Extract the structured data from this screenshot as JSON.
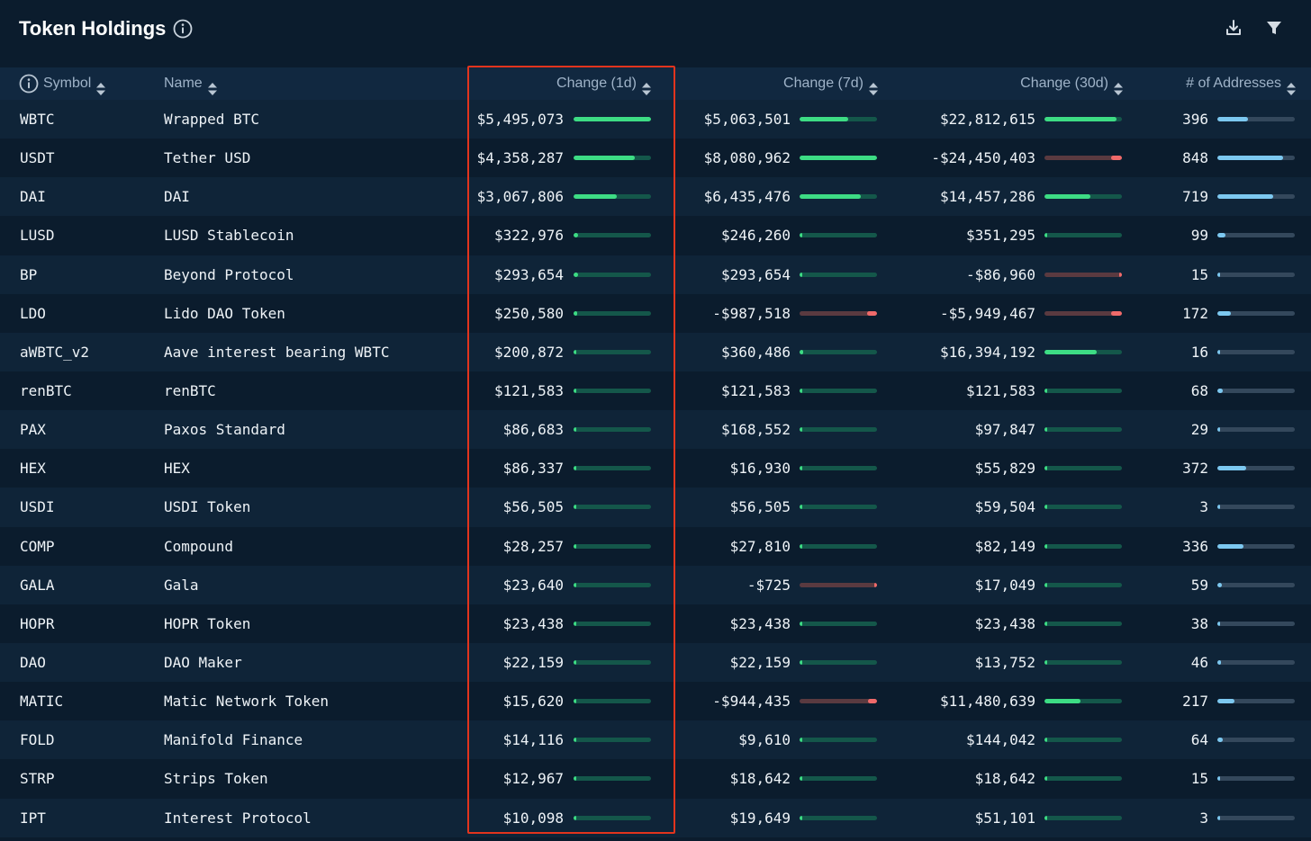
{
  "header": {
    "title": "Token Holdings",
    "info_icon": "info-circle-icon",
    "download_icon": "download-icon",
    "filter_icon": "filter-icon"
  },
  "columns": {
    "symbol": "Symbol",
    "name": "Name",
    "change_1d": "Change (1d)",
    "change_7d": "Change (7d)",
    "change_30d": "Change (30d)",
    "addresses": "# of Addresses",
    "sort_icon": "sort-updown-icon"
  },
  "colors": {
    "background": "#0b1c2d",
    "header_row": "#112840",
    "positive_fill": "#3ddc84",
    "positive_track": "#14574a",
    "negative_fill": "#f06a6a",
    "negative_track": "#5a3a40",
    "address_fill": "#7cc8f0",
    "address_track": "#34485c",
    "highlight_border": "#e2341d"
  },
  "scale": {
    "max_1d": 5495073,
    "max_7d": 8080962,
    "max_30d": 24450403,
    "max_addresses": 1000
  },
  "rows": [
    {
      "symbol": "WBTC",
      "name": "Wrapped BTC",
      "c1d": "$5,495,073",
      "v1d": 5495073,
      "c7d": "$5,063,501",
      "v7d": 5063501,
      "c30d": "$22,812,615",
      "v30d": 22812615,
      "addresses": "396",
      "vaddr": 396
    },
    {
      "symbol": "USDT",
      "name": "Tether USD",
      "c1d": "$4,358,287",
      "v1d": 4358287,
      "c7d": "$8,080,962",
      "v7d": 8080962,
      "c30d": "-$24,450,403",
      "v30d": -24450403,
      "addresses": "848",
      "vaddr": 848
    },
    {
      "symbol": "DAI",
      "name": "DAI",
      "c1d": "$3,067,806",
      "v1d": 3067806,
      "c7d": "$6,435,476",
      "v7d": 6435476,
      "c30d": "$14,457,286",
      "v30d": 14457286,
      "addresses": "719",
      "vaddr": 719
    },
    {
      "symbol": "LUSD",
      "name": "LUSD Stablecoin",
      "c1d": "$322,976",
      "v1d": 322976,
      "c7d": "$246,260",
      "v7d": 246260,
      "c30d": "$351,295",
      "v30d": 351295,
      "addresses": "99",
      "vaddr": 99
    },
    {
      "symbol": "BP",
      "name": "Beyond Protocol",
      "c1d": "$293,654",
      "v1d": 293654,
      "c7d": "$293,654",
      "v7d": 293654,
      "c30d": "-$86,960",
      "v30d": -86960,
      "addresses": "15",
      "vaddr": 15
    },
    {
      "symbol": "LDO",
      "name": "Lido DAO Token",
      "c1d": "$250,580",
      "v1d": 250580,
      "c7d": "-$987,518",
      "v7d": -987518,
      "c30d": "-$5,949,467",
      "v30d": -5949467,
      "addresses": "172",
      "vaddr": 172
    },
    {
      "symbol": "aWBTC_v2",
      "name": "Aave interest bearing WBTC",
      "c1d": "$200,872",
      "v1d": 200872,
      "c7d": "$360,486",
      "v7d": 360486,
      "c30d": "$16,394,192",
      "v30d": 16394192,
      "addresses": "16",
      "vaddr": 16
    },
    {
      "symbol": "renBTC",
      "name": "renBTC",
      "c1d": "$121,583",
      "v1d": 121583,
      "c7d": "$121,583",
      "v7d": 121583,
      "c30d": "$121,583",
      "v30d": 121583,
      "addresses": "68",
      "vaddr": 68
    },
    {
      "symbol": "PAX",
      "name": "Paxos Standard",
      "c1d": "$86,683",
      "v1d": 86683,
      "c7d": "$168,552",
      "v7d": 168552,
      "c30d": "$97,847",
      "v30d": 97847,
      "addresses": "29",
      "vaddr": 29
    },
    {
      "symbol": "HEX",
      "name": "HEX",
      "c1d": "$86,337",
      "v1d": 86337,
      "c7d": "$16,930",
      "v7d": 16930,
      "c30d": "$55,829",
      "v30d": 55829,
      "addresses": "372",
      "vaddr": 372
    },
    {
      "symbol": "USDI",
      "name": "USDI Token",
      "c1d": "$56,505",
      "v1d": 56505,
      "c7d": "$56,505",
      "v7d": 56505,
      "c30d": "$59,504",
      "v30d": 59504,
      "addresses": "3",
      "vaddr": 3
    },
    {
      "symbol": "COMP",
      "name": "Compound",
      "c1d": "$28,257",
      "v1d": 28257,
      "c7d": "$27,810",
      "v7d": 27810,
      "c30d": "$82,149",
      "v30d": 82149,
      "addresses": "336",
      "vaddr": 336
    },
    {
      "symbol": "GALA",
      "name": "Gala",
      "c1d": "$23,640",
      "v1d": 23640,
      "c7d": "-$725",
      "v7d": -725,
      "c30d": "$17,049",
      "v30d": 17049,
      "addresses": "59",
      "vaddr": 59
    },
    {
      "symbol": "HOPR",
      "name": "HOPR Token",
      "c1d": "$23,438",
      "v1d": 23438,
      "c7d": "$23,438",
      "v7d": 23438,
      "c30d": "$23,438",
      "v30d": 23438,
      "addresses": "38",
      "vaddr": 38
    },
    {
      "symbol": "DAO",
      "name": "DAO Maker",
      "c1d": "$22,159",
      "v1d": 22159,
      "c7d": "$22,159",
      "v7d": 22159,
      "c30d": "$13,752",
      "v30d": 13752,
      "addresses": "46",
      "vaddr": 46
    },
    {
      "symbol": "MATIC",
      "name": "Matic Network Token",
      "c1d": "$15,620",
      "v1d": 15620,
      "c7d": "-$944,435",
      "v7d": -944435,
      "c30d": "$11,480,639",
      "v30d": 11480639,
      "addresses": "217",
      "vaddr": 217
    },
    {
      "symbol": "FOLD",
      "name": "Manifold Finance",
      "c1d": "$14,116",
      "v1d": 14116,
      "c7d": "$9,610",
      "v7d": 9610,
      "c30d": "$144,042",
      "v30d": 144042,
      "addresses": "64",
      "vaddr": 64
    },
    {
      "symbol": "STRP",
      "name": "Strips Token",
      "c1d": "$12,967",
      "v1d": 12967,
      "c7d": "$18,642",
      "v7d": 18642,
      "c30d": "$18,642",
      "v30d": 18642,
      "addresses": "15",
      "vaddr": 15
    },
    {
      "symbol": "IPT",
      "name": "Interest Protocol",
      "c1d": "$10,098",
      "v1d": 10098,
      "c7d": "$19,649",
      "v7d": 19649,
      "c30d": "$51,101",
      "v30d": 51101,
      "addresses": "3",
      "vaddr": 3
    }
  ]
}
